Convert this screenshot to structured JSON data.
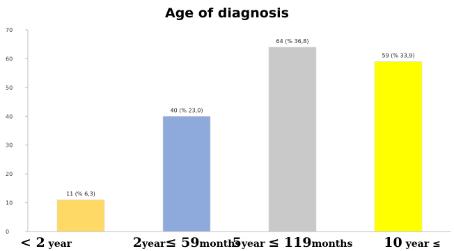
{
  "chart_data": {
    "type": "bar",
    "title": "Age of diagnosis",
    "xlabel": "",
    "ylabel": "",
    "ylim": [
      0,
      70
    ],
    "yticks": [
      0,
      10,
      20,
      30,
      40,
      50,
      60,
      70
    ],
    "grid": false,
    "categories": [
      {
        "big": "< 2",
        "small": " year"
      },
      {
        "big": "2",
        "small": "year",
        "big2": "≤ 59",
        "small2": "months"
      },
      {
        "big": "5",
        "small": "year ",
        "big2": "≤ 119",
        "small2": "months"
      },
      {
        "big": "10",
        "small": " year ≤"
      }
    ],
    "values": [
      11,
      40,
      64,
      59
    ],
    "data_labels": [
      "11 (% 6,3)",
      "40 (% 23,0)",
      "64 (% 36,8)",
      "59 (% 33,9)"
    ],
    "colors": [
      "#FFD966",
      "#8EA9DB",
      "#C9C9C9",
      "#FFFF00"
    ]
  }
}
